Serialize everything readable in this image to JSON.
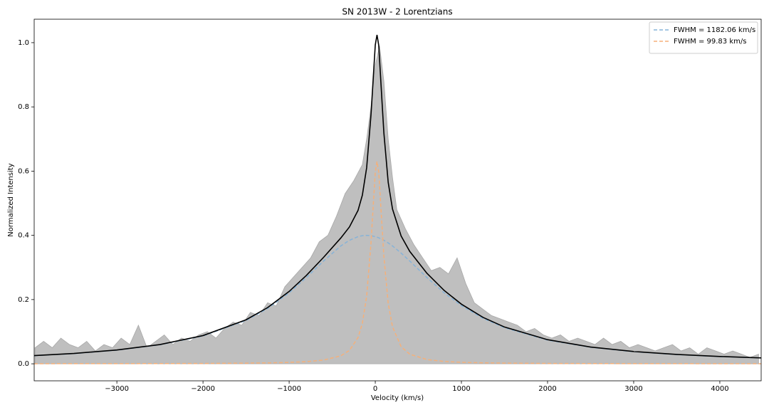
{
  "chart_data": {
    "type": "line",
    "title": "SN 2013W - 2 Lorentzians",
    "x_label": "Velocity (km/s)",
    "y_label": "Normalized Intensity",
    "xlim": [
      -3960,
      4480
    ],
    "ylim": [
      -0.053,
      1.073
    ],
    "xticks": [
      {
        "value": -3000,
        "label": "−3000"
      },
      {
        "value": -2000,
        "label": "−2000"
      },
      {
        "value": -1000,
        "label": "−1000"
      },
      0,
      1000,
      2000,
      3000,
      4000
    ],
    "yticks": [
      {
        "value": 0,
        "label": "0.0"
      },
      0.2,
      0.4,
      0.6,
      0.8,
      {
        "value": 1,
        "label": "1.0"
      }
    ],
    "legend": "upper right",
    "series": [
      {
        "style": "area",
        "color": "#bfbfbf",
        "x": [
          -3950,
          -3850,
          -3750,
          -3650,
          -3550,
          -3450,
          -3350,
          -3250,
          -3150,
          -3050,
          -2950,
          -2850,
          -2750,
          -2650,
          -2550,
          -2450,
          -2350,
          -2250,
          -2150,
          -2050,
          -1950,
          -1850,
          -1750,
          -1650,
          -1550,
          -1450,
          -1350,
          -1250,
          -1150,
          -1050,
          -950,
          -850,
          -750,
          -650,
          -550,
          -450,
          -350,
          -250,
          -150,
          -100,
          -50,
          0,
          50,
          100,
          150,
          200,
          250,
          350,
          450,
          550,
          650,
          750,
          850,
          950,
          1050,
          1150,
          1250,
          1350,
          1450,
          1550,
          1650,
          1750,
          1850,
          1950,
          2050,
          2150,
          2250,
          2350,
          2450,
          2550,
          2650,
          2750,
          2850,
          2950,
          3050,
          3150,
          3250,
          3350,
          3450,
          3550,
          3650,
          3750,
          3850,
          3950,
          4050,
          4150,
          4250,
          4350,
          4450
        ],
        "values": [
          0.05,
          0.07,
          0.05,
          0.08,
          0.06,
          0.05,
          0.07,
          0.04,
          0.06,
          0.05,
          0.08,
          0.06,
          0.12,
          0.05,
          0.07,
          0.09,
          0.06,
          0.08,
          0.07,
          0.09,
          0.1,
          0.08,
          0.11,
          0.13,
          0.12,
          0.16,
          0.15,
          0.19,
          0.18,
          0.24,
          0.27,
          0.3,
          0.33,
          0.38,
          0.4,
          0.46,
          0.53,
          0.57,
          0.62,
          0.7,
          0.8,
          0.93,
          0.99,
          0.88,
          0.7,
          0.58,
          0.48,
          0.42,
          0.37,
          0.33,
          0.29,
          0.3,
          0.28,
          0.33,
          0.25,
          0.19,
          0.17,
          0.15,
          0.14,
          0.13,
          0.12,
          0.1,
          0.11,
          0.09,
          0.08,
          0.09,
          0.07,
          0.08,
          0.07,
          0.06,
          0.08,
          0.06,
          0.07,
          0.05,
          0.06,
          0.05,
          0.04,
          0.05,
          0.06,
          0.04,
          0.05,
          0.03,
          0.05,
          0.04,
          0.03,
          0.04,
          0.03,
          0.02,
          0.03
        ]
      },
      {
        "name": "FWHM = 1182.06 km/s",
        "style": "dashed",
        "color": "#86b3d8",
        "x": [
          -3960,
          -3500,
          -3000,
          -2500,
          -2000,
          -1500,
          -1250,
          -1000,
          -800,
          -600,
          -400,
          -300,
          -200,
          -150,
          -100,
          -50,
          0,
          20,
          40,
          80,
          100,
          150,
          200,
          300,
          400,
          600,
          800,
          1000,
          1250,
          1500,
          2000,
          2500,
          3000,
          3500,
          4000,
          4480
        ],
        "values": [
          0.0252,
          0.0318,
          0.0425,
          0.0592,
          0.0868,
          0.1351,
          0.1722,
          0.221,
          0.2685,
          0.32,
          0.367,
          0.3846,
          0.396,
          0.399,
          0.4,
          0.399,
          0.396,
          0.3943,
          0.3923,
          0.3874,
          0.3846,
          0.3765,
          0.367,
          0.3448,
          0.32,
          0.2685,
          0.221,
          0.181,
          0.1417,
          0.1124,
          0.0739,
          0.0515,
          0.0377,
          0.0287,
          0.0225,
          0.0182
        ]
      },
      {
        "name": "FWHM = 99.83 km/s",
        "style": "dashed",
        "color": "#f5b07a",
        "x": [
          -3960,
          -3500,
          -3000,
          -2500,
          -2000,
          -1500,
          -1250,
          -1000,
          -800,
          -600,
          -400,
          -300,
          -200,
          -150,
          -100,
          -50,
          0,
          20,
          40,
          80,
          100,
          150,
          200,
          300,
          400,
          600,
          800,
          1000,
          1250,
          1500,
          2000,
          2500,
          3000,
          3500,
          4000,
          4480
        ],
        "values": [
          0.00029,
          0.00037,
          0.0005,
          0.00072,
          0.0011,
          0.002,
          0.0028,
          0.0044,
          0.0067,
          0.0116,
          0.0248,
          0.0415,
          0.0818,
          0.126,
          0.2107,
          0.3754,
          0.597,
          0.63,
          0.597,
          0.4206,
          0.334,
          0.1886,
          0.115,
          0.0532,
          0.03,
          0.0132,
          0.0074,
          0.0047,
          0.003,
          0.0021,
          0.0012,
          0.00074,
          0.00051,
          0.00038,
          0.00029,
          0.00023
        ]
      },
      {
        "style": "solid",
        "color": "#000000",
        "x": [
          -3960,
          -3500,
          -3000,
          -2500,
          -2000,
          -1500,
          -1250,
          -1000,
          -800,
          -600,
          -400,
          -300,
          -200,
          -150,
          -100,
          -50,
          0,
          20,
          40,
          80,
          100,
          150,
          200,
          300,
          400,
          600,
          800,
          1000,
          1250,
          1500,
          2000,
          2500,
          3000,
          3500,
          4000,
          4480
        ],
        "values": [
          0.0255,
          0.0322,
          0.043,
          0.0599,
          0.0879,
          0.1371,
          0.175,
          0.2254,
          0.2752,
          0.3316,
          0.3918,
          0.4261,
          0.4778,
          0.525,
          0.6107,
          0.7744,
          0.993,
          1.0243,
          0.992,
          0.808,
          0.7186,
          0.5651,
          0.482,
          0.398,
          0.35,
          0.2817,
          0.2284,
          0.1857,
          0.1447,
          0.1145,
          0.0751,
          0.0522,
          0.0382,
          0.0291,
          0.0228,
          0.0184
        ]
      }
    ]
  }
}
